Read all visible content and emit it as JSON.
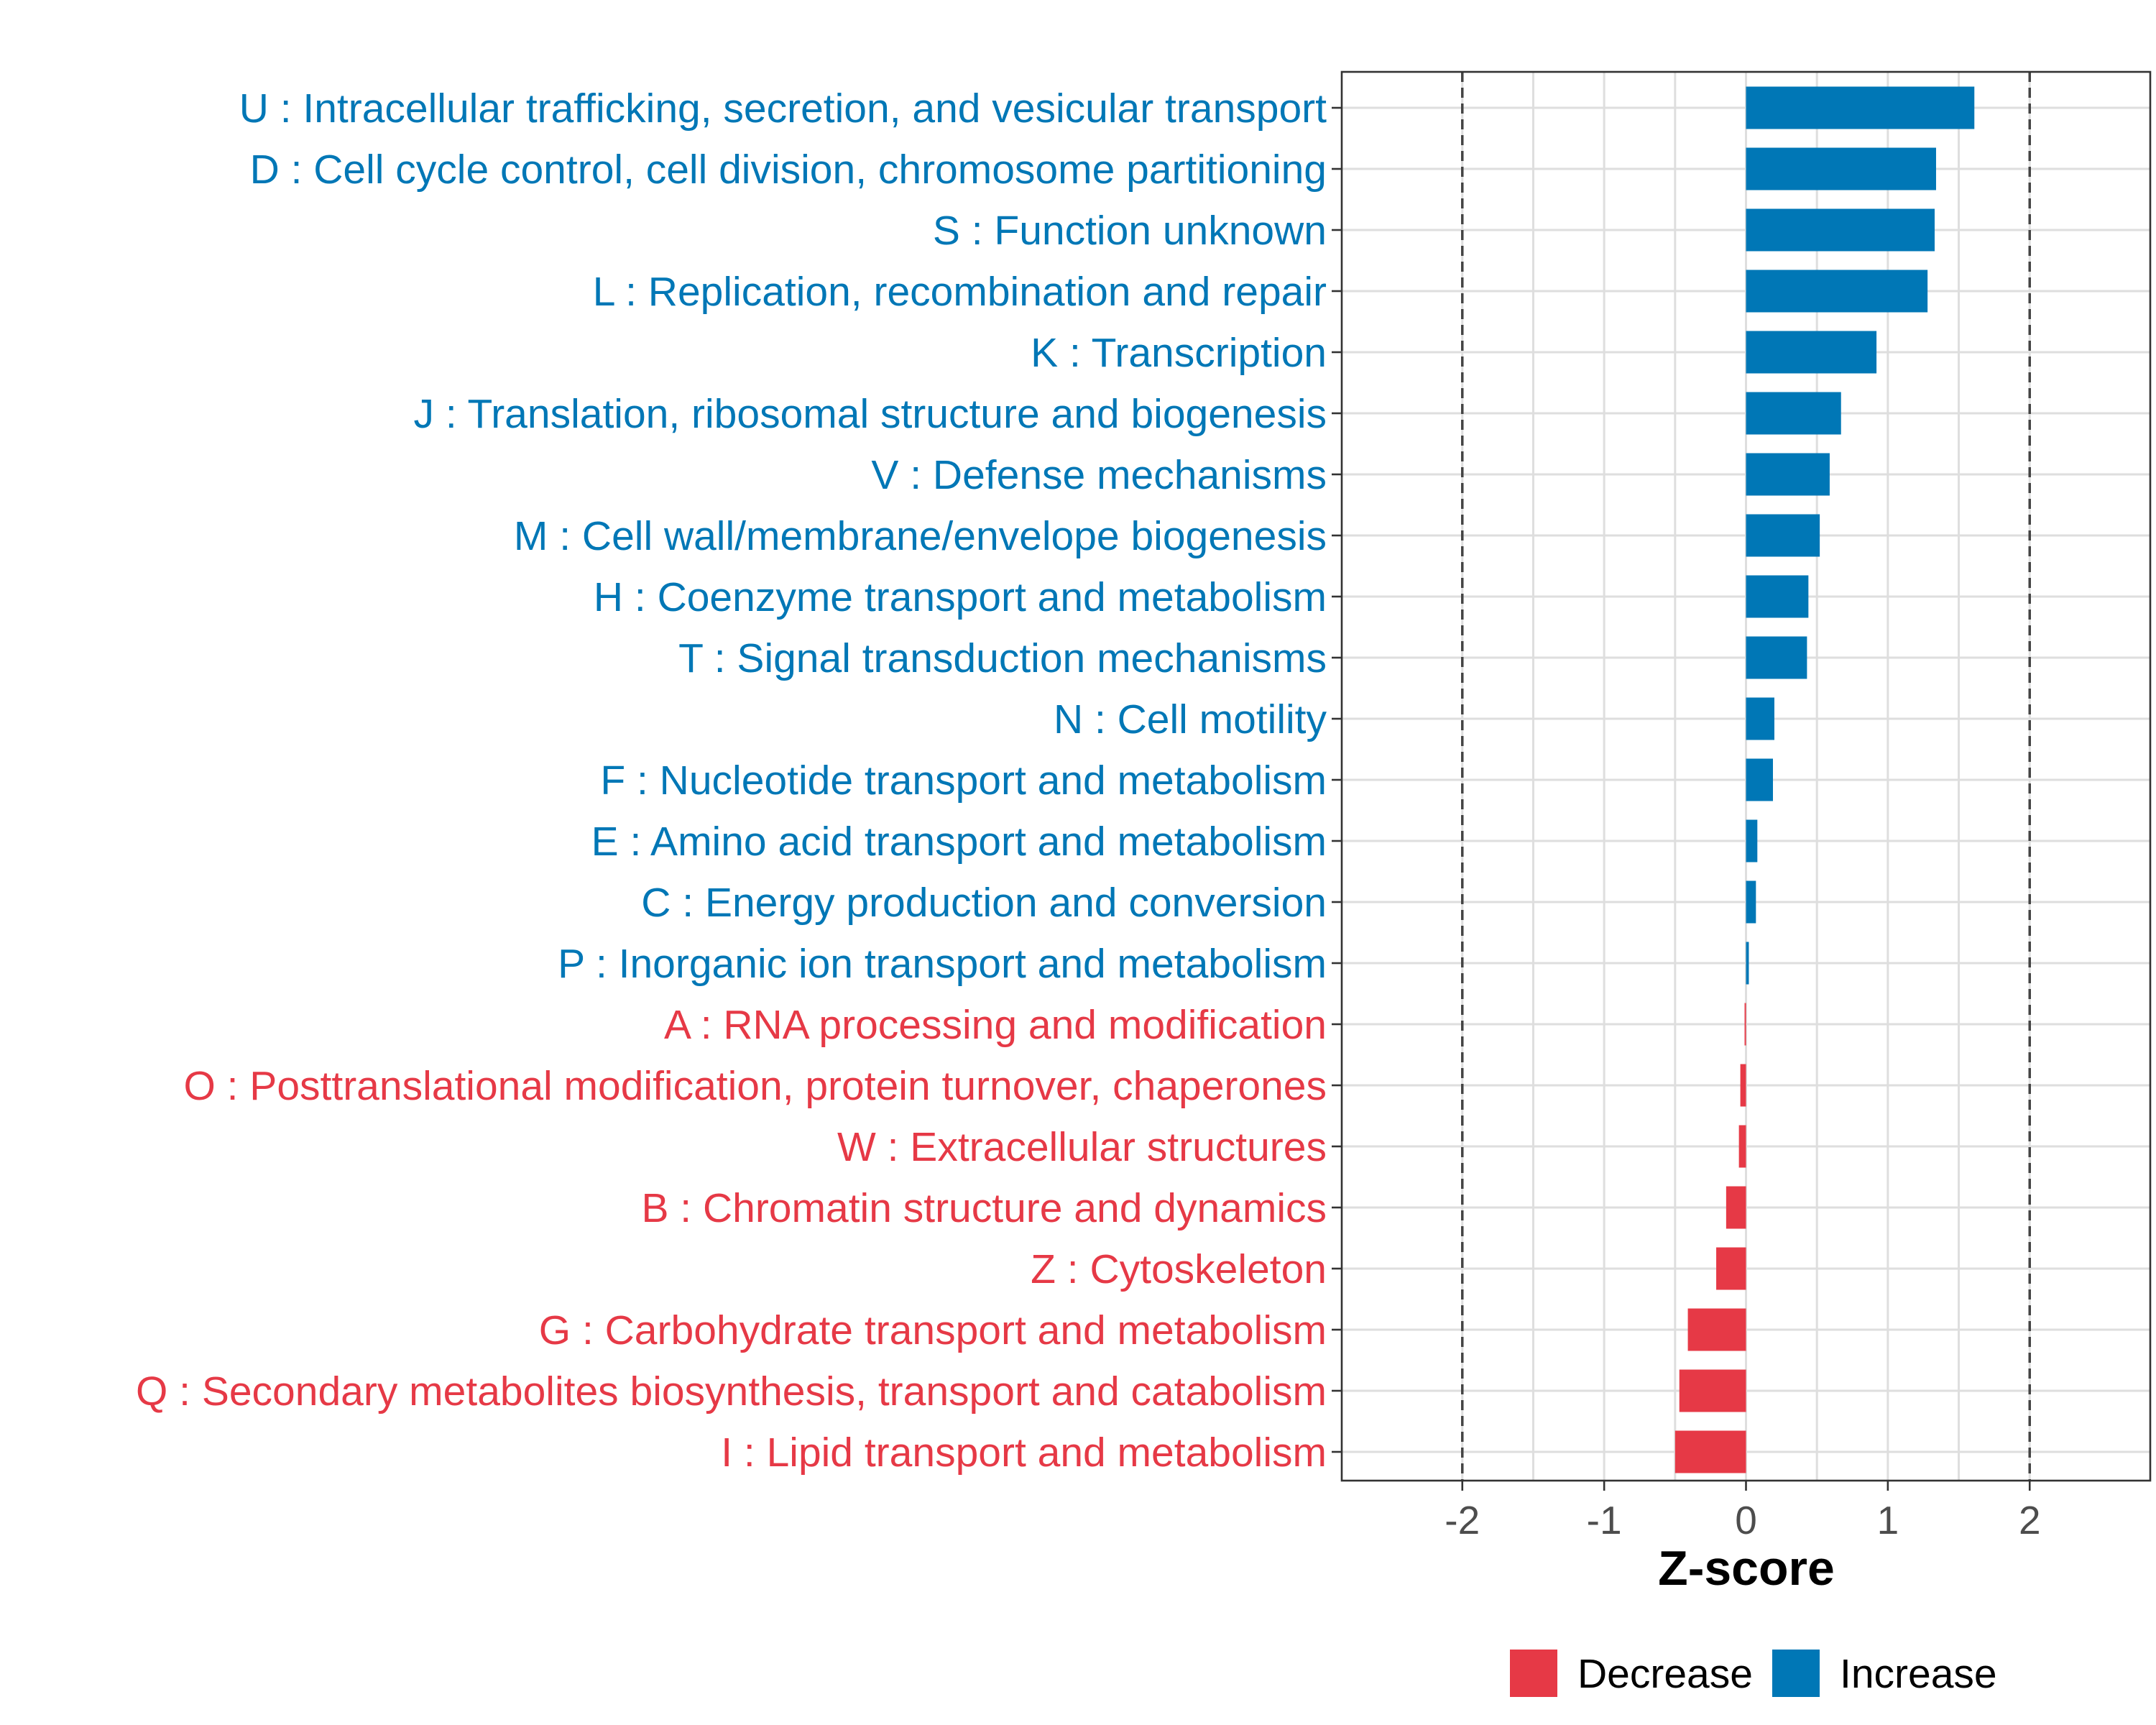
{
  "chart_data": {
    "type": "bar",
    "orientation": "horizontal",
    "xlabel": "Z-score",
    "ylabel": "",
    "xlim": [
      -2.85,
      2.85
    ],
    "x_ticks": [
      "-2",
      "-1",
      "0",
      "1",
      "2"
    ],
    "x_tick_values": [
      -2,
      -1,
      0,
      1,
      2
    ],
    "reference_lines": [
      -2,
      2
    ],
    "grid": true,
    "legend_placement": "bottom",
    "colors": {
      "Decrease": "#E63946",
      "Increase": "#0077B6"
    },
    "legend": [
      {
        "label": "Decrease",
        "color": "#E63946"
      },
      {
        "label": "Increase",
        "color": "#0077B6"
      }
    ],
    "categories": [
      {
        "label": "U : Intracellular trafficking, secretion, and vesicular transport",
        "value": 1.61,
        "group": "Increase"
      },
      {
        "label": "D : Cell cycle control, cell division, chromosome partitioning",
        "value": 1.34,
        "group": "Increase"
      },
      {
        "label": "S : Function unknown",
        "value": 1.33,
        "group": "Increase"
      },
      {
        "label": "L : Replication, recombination and repair",
        "value": 1.28,
        "group": "Increase"
      },
      {
        "label": "K : Transcription",
        "value": 0.92,
        "group": "Increase"
      },
      {
        "label": "J : Translation, ribosomal structure and biogenesis",
        "value": 0.67,
        "group": "Increase"
      },
      {
        "label": "V : Defense mechanisms",
        "value": 0.59,
        "group": "Increase"
      },
      {
        "label": "M : Cell wall/membrane/envelope biogenesis",
        "value": 0.52,
        "group": "Increase"
      },
      {
        "label": "H : Coenzyme transport and metabolism",
        "value": 0.44,
        "group": "Increase"
      },
      {
        "label": "T : Signal transduction mechanisms",
        "value": 0.43,
        "group": "Increase"
      },
      {
        "label": "N : Cell motility",
        "value": 0.2,
        "group": "Increase"
      },
      {
        "label": "F : Nucleotide transport and metabolism",
        "value": 0.19,
        "group": "Increase"
      },
      {
        "label": "E : Amino acid transport and metabolism",
        "value": 0.08,
        "group": "Increase"
      },
      {
        "label": "C : Energy production and conversion",
        "value": 0.07,
        "group": "Increase"
      },
      {
        "label": "P : Inorganic ion transport and metabolism",
        "value": 0.02,
        "group": "Increase"
      },
      {
        "label": "A : RNA processing and modification",
        "value": -0.01,
        "group": "Decrease"
      },
      {
        "label": "O : Posttranslational modification, protein turnover, chaperones",
        "value": -0.04,
        "group": "Decrease"
      },
      {
        "label": "W : Extracellular structures",
        "value": -0.05,
        "group": "Decrease"
      },
      {
        "label": "B : Chromatin structure and dynamics",
        "value": -0.14,
        "group": "Decrease"
      },
      {
        "label": "Z : Cytoskeleton",
        "value": -0.21,
        "group": "Decrease"
      },
      {
        "label": "G : Carbohydrate transport and metabolism",
        "value": -0.41,
        "group": "Decrease"
      },
      {
        "label": "Q : Secondary metabolites biosynthesis, transport and catabolism",
        "value": -0.47,
        "group": "Decrease"
      },
      {
        "label": "I : Lipid transport and metabolism",
        "value": -0.5,
        "group": "Decrease"
      }
    ]
  }
}
